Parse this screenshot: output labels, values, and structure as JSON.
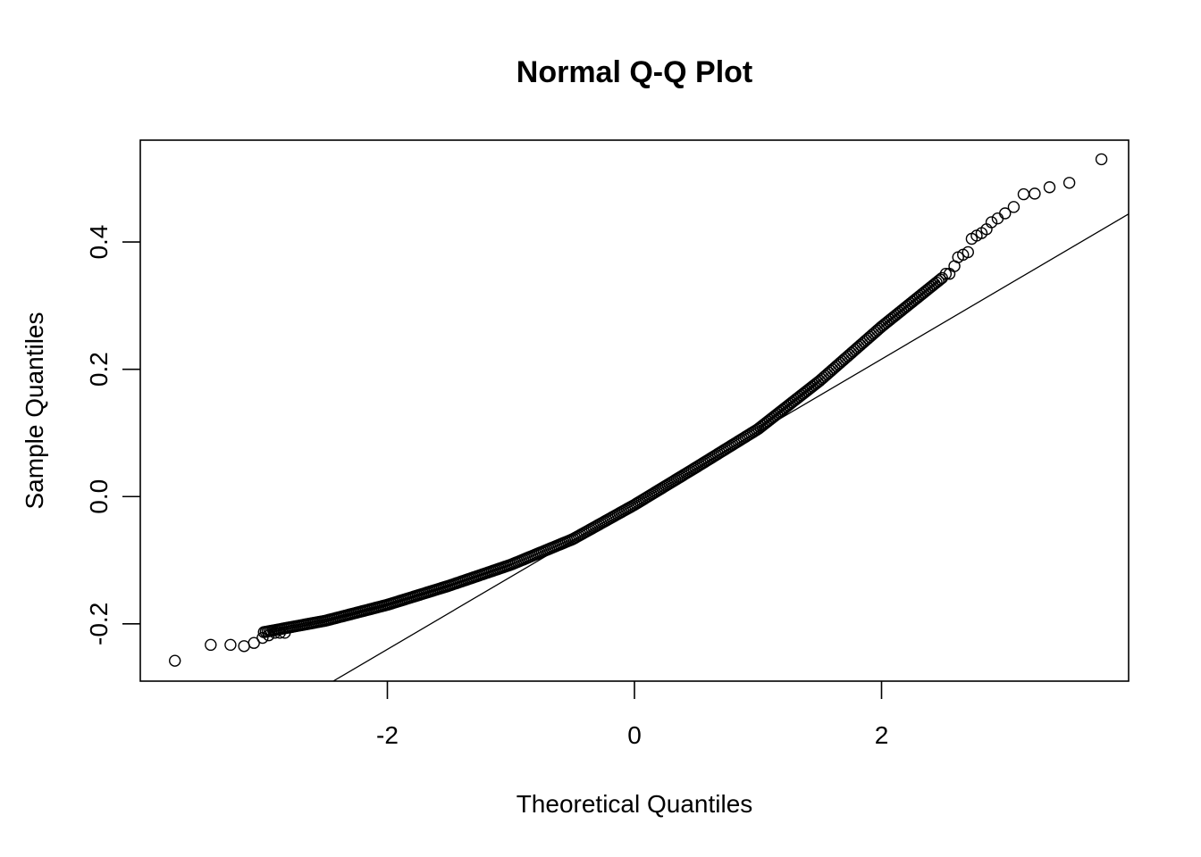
{
  "chart_data": {
    "type": "scatter",
    "title": "Normal Q-Q Plot",
    "xlabel": "Theoretical Quantiles",
    "ylabel": "Sample Quantiles",
    "xlim": [
      -4.0,
      4.0
    ],
    "ylim": [
      -0.29,
      0.56
    ],
    "x_ticks": [
      -2,
      0,
      2
    ],
    "x_tick_labels": [
      "-2",
      "0",
      "2"
    ],
    "y_ticks": [
      -0.2,
      0.0,
      0.2,
      0.4
    ],
    "y_tick_labels": [
      "-0.2",
      "0.0",
      "0.2",
      "0.4"
    ],
    "grid": false,
    "legend": "none",
    "reference_line": {
      "intercept": -0.012,
      "slope": 0.114
    },
    "curve_knots": {
      "x": [
        -3.0,
        -2.5,
        -2.0,
        -1.5,
        -1.0,
        -0.5,
        0.0,
        0.5,
        1.0,
        1.5,
        2.0,
        2.5
      ],
      "y": [
        -0.213,
        -0.195,
        -0.17,
        -0.14,
        -0.107,
        -0.067,
        -0.013,
        0.046,
        0.106,
        0.182,
        0.267,
        0.345
      ]
    },
    "tail_points": [
      {
        "x": -3.72,
        "y": -0.258
      },
      {
        "x": -3.43,
        "y": -0.233
      },
      {
        "x": -3.27,
        "y": -0.233
      },
      {
        "x": -3.16,
        "y": -0.235
      },
      {
        "x": -3.08,
        "y": -0.23
      },
      {
        "x": -3.01,
        "y": -0.222
      },
      {
        "x": -2.96,
        "y": -0.218
      },
      {
        "x": -2.91,
        "y": -0.214
      },
      {
        "x": -2.87,
        "y": -0.214
      },
      {
        "x": -2.83,
        "y": -0.214
      },
      {
        "x": 2.52,
        "y": 0.35
      },
      {
        "x": 2.55,
        "y": 0.35
      },
      {
        "x": 2.59,
        "y": 0.362
      },
      {
        "x": 2.62,
        "y": 0.376
      },
      {
        "x": 2.66,
        "y": 0.38
      },
      {
        "x": 2.7,
        "y": 0.384
      },
      {
        "x": 2.73,
        "y": 0.405
      },
      {
        "x": 2.77,
        "y": 0.41
      },
      {
        "x": 2.81,
        "y": 0.414
      },
      {
        "x": 2.85,
        "y": 0.42
      },
      {
        "x": 2.89,
        "y": 0.431
      },
      {
        "x": 2.94,
        "y": 0.437
      },
      {
        "x": 3.0,
        "y": 0.445
      },
      {
        "x": 3.07,
        "y": 0.455
      },
      {
        "x": 3.15,
        "y": 0.475
      },
      {
        "x": 3.24,
        "y": 0.476
      },
      {
        "x": 3.36,
        "y": 0.486
      },
      {
        "x": 3.52,
        "y": 0.493
      },
      {
        "x": 3.78,
        "y": 0.53
      }
    ]
  }
}
